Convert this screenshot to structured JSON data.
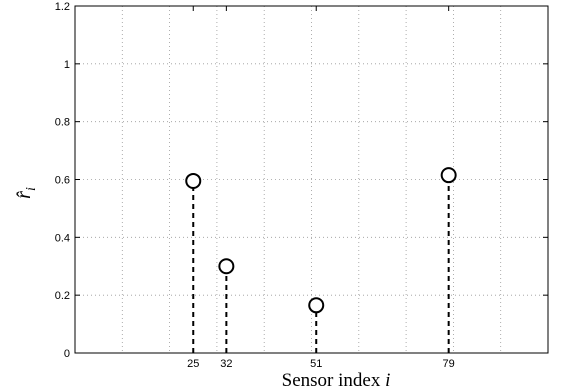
{
  "chart_data": {
    "type": "scatter",
    "subtype": "stem",
    "title": "",
    "xlabel": "Sensor index",
    "xlabel_var": "i",
    "ylabel": "r̂",
    "ylabel_sub": "i",
    "xlim": [
      0,
      100
    ],
    "ylim": [
      0,
      1.2
    ],
    "grid": true,
    "yticks": [
      "0",
      "0.2",
      "0.4",
      "0.6",
      "0.8",
      "1",
      "1.2"
    ],
    "ytick_values": [
      0,
      0.2,
      0.4,
      0.6,
      0.8,
      1.0,
      1.2
    ],
    "xticks": [
      "25",
      "32",
      "51",
      "79"
    ],
    "xtick_values": [
      25,
      32,
      51,
      79
    ],
    "xgrid_values": [
      10,
      20,
      30,
      40,
      50,
      60,
      70,
      80,
      90
    ],
    "series": [
      {
        "marker": "circle",
        "stem_style": "dashed",
        "x": [
          25,
          32,
          51,
          79
        ],
        "y": [
          0.595,
          0.3,
          0.165,
          0.615
        ]
      }
    ]
  }
}
